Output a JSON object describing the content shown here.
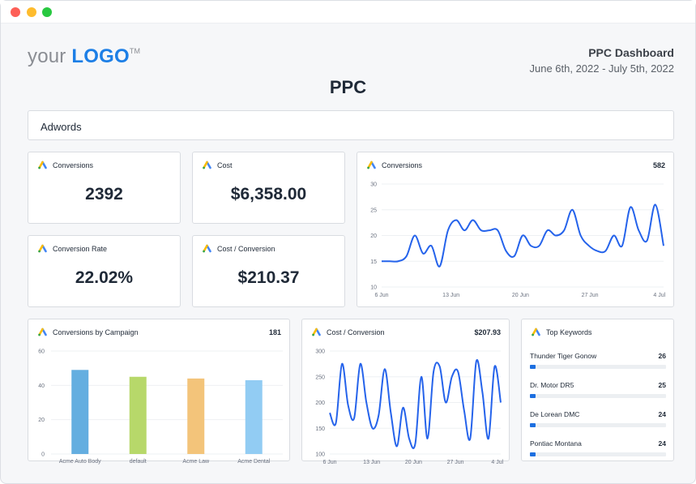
{
  "window": {
    "controls": [
      "close",
      "minimize",
      "zoom"
    ]
  },
  "header": {
    "logo_your": "your",
    "logo_brand": "LOGO",
    "logo_tm": "TM",
    "dashboard_name": "PPC Dashboard",
    "date_range": "June 6th, 2022 - July 5th, 2022",
    "page_title": "PPC"
  },
  "section": {
    "label": "Adwords"
  },
  "kpis": [
    {
      "title": "Conversions",
      "value": "2392"
    },
    {
      "title": "Cost",
      "value": "$6,358.00"
    },
    {
      "title": "Conversion Rate",
      "value": "22.02%"
    },
    {
      "title": "Cost / Conversion",
      "value": "$210.37"
    }
  ],
  "conversions_chart": {
    "title": "Conversions",
    "total": "582"
  },
  "campaign_chart": {
    "title": "Conversions by Campaign",
    "total": "181"
  },
  "cpc_chart": {
    "title": "Cost / Conversion",
    "total": "$207.93"
  },
  "keywords": {
    "title": "Top Keywords",
    "items": [
      {
        "name": "Thunder Tiger Gonow",
        "count": "26",
        "fraction": 0.04
      },
      {
        "name": "Dr. Motor DR5",
        "count": "25",
        "fraction": 0.04
      },
      {
        "name": "De Lorean DMC",
        "count": "24",
        "fraction": 0.04
      },
      {
        "name": "Pontiac Montana",
        "count": "24",
        "fraction": 0.04
      }
    ]
  },
  "colors": {
    "brand": "#1d7fe6",
    "line": "#2563eb",
    "keyword_bar": "#1d6fe0"
  },
  "chart_data": [
    {
      "type": "line",
      "title": "Conversions",
      "x_ticks": [
        "6 Jun",
        "13 Jun",
        "20 Jun",
        "27 Jun",
        "4 Jul"
      ],
      "ylim": [
        10,
        30
      ],
      "y_ticks": [
        10,
        15,
        20,
        25,
        30
      ],
      "values": [
        15,
        15,
        15,
        16,
        20,
        16.5,
        18,
        14,
        21,
        23,
        21,
        23,
        21,
        21,
        21,
        17,
        16,
        20,
        18,
        18,
        21,
        20,
        21,
        25,
        20,
        18,
        17,
        17,
        20,
        18,
        25.5,
        21,
        19,
        26,
        18
      ]
    },
    {
      "type": "bar",
      "title": "Conversions by Campaign",
      "categories": [
        "Acme Auto Body",
        "default",
        "Acme Law",
        "Acme Dental"
      ],
      "values": [
        49,
        45,
        44,
        43
      ],
      "colors": [
        "#64aee0",
        "#b7d86a",
        "#f3c47a",
        "#92ccf3"
      ],
      "ylim": [
        0,
        60
      ],
      "y_ticks": [
        0,
        20,
        40,
        60
      ]
    },
    {
      "type": "line",
      "title": "Cost / Conversion",
      "x_ticks": [
        "6 Jun",
        "13 Jun",
        "20 Jun",
        "27 Jun",
        "4 Jul"
      ],
      "ylim": [
        100,
        300
      ],
      "y_ticks": [
        100,
        150,
        200,
        250,
        300
      ],
      "values": [
        180,
        160,
        275,
        195,
        170,
        275,
        200,
        150,
        175,
        265,
        180,
        115,
        190,
        130,
        120,
        250,
        130,
        260,
        270,
        200,
        250,
        260,
        185,
        130,
        280,
        220,
        130,
        270,
        200
      ]
    }
  ]
}
